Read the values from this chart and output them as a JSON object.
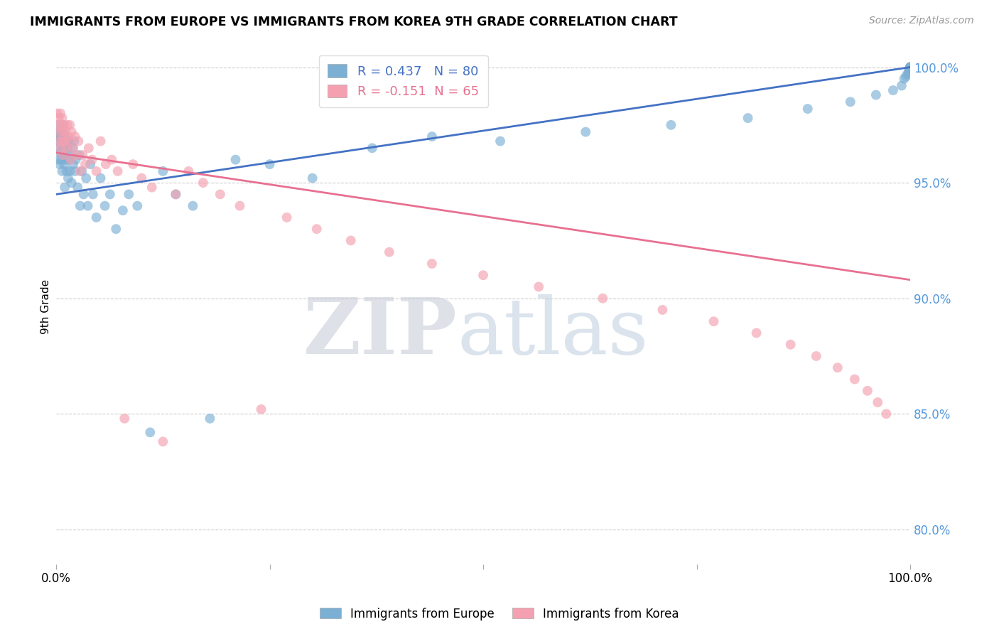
{
  "title": "IMMIGRANTS FROM EUROPE VS IMMIGRANTS FROM KOREA 9TH GRADE CORRELATION CHART",
  "source": "Source: ZipAtlas.com",
  "ylabel": "9th Grade",
  "y_ticks": [
    0.8,
    0.85,
    0.9,
    0.95,
    1.0
  ],
  "y_tick_labels": [
    "80.0%",
    "85.0%",
    "90.0%",
    "95.0%",
    "100.0%"
  ],
  "x_range": [
    0.0,
    1.0
  ],
  "y_range": [
    0.785,
    1.008
  ],
  "blue_R": 0.437,
  "blue_N": 80,
  "pink_R": -0.151,
  "pink_N": 65,
  "blue_color": "#7BAFD4",
  "pink_color": "#F4A0B0",
  "blue_line_color": "#4472C4",
  "pink_line_color": "#E87090",
  "legend_label_blue": "Immigrants from Europe",
  "legend_label_pink": "Immigrants from Korea",
  "blue_scatter_x": [
    0.001,
    0.002,
    0.002,
    0.003,
    0.003,
    0.004,
    0.004,
    0.005,
    0.005,
    0.006,
    0.006,
    0.007,
    0.007,
    0.008,
    0.008,
    0.009,
    0.009,
    0.01,
    0.01,
    0.011,
    0.012,
    0.012,
    0.013,
    0.014,
    0.015,
    0.015,
    0.016,
    0.017,
    0.018,
    0.019,
    0.02,
    0.021,
    0.022,
    0.023,
    0.025,
    0.027,
    0.028,
    0.03,
    0.032,
    0.035,
    0.037,
    0.04,
    0.043,
    0.047,
    0.052,
    0.057,
    0.063,
    0.07,
    0.078,
    0.085,
    0.095,
    0.11,
    0.125,
    0.14,
    0.16,
    0.18,
    0.21,
    0.25,
    0.3,
    0.37,
    0.44,
    0.52,
    0.62,
    0.72,
    0.81,
    0.88,
    0.93,
    0.96,
    0.98,
    0.99,
    0.993,
    0.995,
    0.997,
    0.998,
    0.999,
    1.0,
    1.0,
    1.0,
    1.0,
    1.0
  ],
  "blue_scatter_y": [
    0.97,
    0.968,
    0.975,
    0.96,
    0.972,
    0.965,
    0.958,
    0.97,
    0.963,
    0.968,
    0.96,
    0.972,
    0.955,
    0.965,
    0.975,
    0.958,
    0.962,
    0.97,
    0.948,
    0.96,
    0.968,
    0.955,
    0.965,
    0.952,
    0.96,
    0.968,
    0.955,
    0.962,
    0.95,
    0.965,
    0.958,
    0.968,
    0.955,
    0.96,
    0.948,
    0.962,
    0.94,
    0.955,
    0.945,
    0.952,
    0.94,
    0.958,
    0.945,
    0.935,
    0.952,
    0.94,
    0.945,
    0.93,
    0.938,
    0.945,
    0.94,
    0.842,
    0.955,
    0.945,
    0.94,
    0.848,
    0.96,
    0.958,
    0.952,
    0.965,
    0.97,
    0.968,
    0.972,
    0.975,
    0.978,
    0.982,
    0.985,
    0.988,
    0.99,
    0.992,
    0.995,
    0.996,
    0.997,
    0.998,
    0.999,
    1.0,
    1.0,
    1.0,
    1.0,
    1.0
  ],
  "pink_scatter_x": [
    0.001,
    0.002,
    0.003,
    0.003,
    0.004,
    0.005,
    0.005,
    0.006,
    0.007,
    0.007,
    0.008,
    0.008,
    0.009,
    0.01,
    0.011,
    0.012,
    0.013,
    0.014,
    0.015,
    0.016,
    0.017,
    0.018,
    0.02,
    0.022,
    0.024,
    0.026,
    0.028,
    0.031,
    0.034,
    0.038,
    0.042,
    0.047,
    0.052,
    0.058,
    0.065,
    0.072,
    0.08,
    0.09,
    0.1,
    0.112,
    0.125,
    0.14,
    0.155,
    0.172,
    0.192,
    0.215,
    0.24,
    0.27,
    0.305,
    0.345,
    0.39,
    0.44,
    0.5,
    0.565,
    0.64,
    0.71,
    0.77,
    0.82,
    0.86,
    0.89,
    0.915,
    0.935,
    0.95,
    0.962,
    0.972
  ],
  "pink_scatter_y": [
    0.98,
    0.975,
    0.968,
    0.978,
    0.972,
    0.98,
    0.965,
    0.975,
    0.968,
    0.978,
    0.972,
    0.962,
    0.975,
    0.968,
    0.972,
    0.965,
    0.975,
    0.97,
    0.968,
    0.975,
    0.96,
    0.972,
    0.965,
    0.97,
    0.962,
    0.968,
    0.955,
    0.962,
    0.958,
    0.965,
    0.96,
    0.955,
    0.968,
    0.958,
    0.96,
    0.955,
    0.848,
    0.958,
    0.952,
    0.948,
    0.838,
    0.945,
    0.955,
    0.95,
    0.945,
    0.94,
    0.852,
    0.935,
    0.93,
    0.925,
    0.92,
    0.915,
    0.91,
    0.905,
    0.9,
    0.895,
    0.89,
    0.885,
    0.88,
    0.875,
    0.87,
    0.865,
    0.86,
    0.855,
    0.85
  ]
}
